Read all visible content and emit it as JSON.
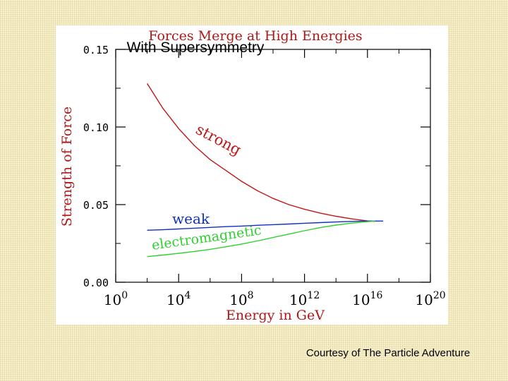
{
  "annotations": {
    "subtitle": "With Supersymmetry",
    "credit": "Courtesy of The Particle Adventure"
  },
  "chart_data": {
    "type": "line",
    "title": "Forces Merge at High Energies",
    "xlabel": "Energy in GeV",
    "ylabel": "Strength of Force",
    "x_scale": "log",
    "xlim": [
      1,
      1e+20
    ],
    "ylim": [
      0,
      0.15
    ],
    "x_ticks": [
      {
        "value": 1,
        "base": "10",
        "exp": "0"
      },
      {
        "value": 10000,
        "base": "10",
        "exp": "4"
      },
      {
        "value": 100000000,
        "base": "10",
        "exp": "8"
      },
      {
        "value": 1000000000000.0,
        "base": "10",
        "exp": "12"
      },
      {
        "value": 1e+16,
        "base": "10",
        "exp": "16"
      },
      {
        "value": 1e+20,
        "base": "10",
        "exp": "20"
      }
    ],
    "y_ticks": [
      {
        "value": 0,
        "label": "0.00"
      },
      {
        "value": 0.05,
        "label": "0.05"
      },
      {
        "value": 0.1,
        "label": "0.10"
      },
      {
        "value": 0.15,
        "label": "0.15"
      }
    ],
    "series": [
      {
        "name": "strong",
        "color": "#c01818",
        "points": [
          [
            100,
            0.128
          ],
          [
            1000,
            0.112
          ],
          [
            10000,
            0.099
          ],
          [
            100000,
            0.088
          ],
          [
            1000000,
            0.079
          ],
          [
            10000000,
            0.072
          ],
          [
            100000000,
            0.065
          ],
          [
            1000000000,
            0.059
          ],
          [
            10000000000,
            0.054
          ],
          [
            100000000000,
            0.05
          ],
          [
            1000000000000.0,
            0.047
          ],
          [
            10000000000000.0,
            0.0445
          ],
          [
            100000000000000.0,
            0.0425
          ],
          [
            1000000000000000.0,
            0.0408
          ],
          [
            1e+16,
            0.0395
          ],
          [
            3e+16,
            0.0392
          ]
        ]
      },
      {
        "name": "weak",
        "color": "#1030c0",
        "points": [
          [
            100,
            0.0335
          ],
          [
            1000,
            0.0338
          ],
          [
            10000,
            0.0343
          ],
          [
            100000,
            0.0348
          ],
          [
            1000000,
            0.0353
          ],
          [
            10000000,
            0.0358
          ],
          [
            100000000,
            0.0362
          ],
          [
            1000000000,
            0.0367
          ],
          [
            10000000000,
            0.0371
          ],
          [
            100000000000,
            0.0375
          ],
          [
            1000000000000.0,
            0.038
          ],
          [
            10000000000000.0,
            0.0384
          ],
          [
            100000000000000.0,
            0.0388
          ],
          [
            1000000000000000.0,
            0.0392
          ],
          [
            1e+16,
            0.0394
          ],
          [
            1e+17,
            0.0394
          ]
        ]
      },
      {
        "name": "electromagnetic",
        "color": "#30d030",
        "points": [
          [
            100,
            0.0165
          ],
          [
            1000,
            0.0175
          ],
          [
            10000,
            0.0186
          ],
          [
            100000,
            0.0198
          ],
          [
            1000000,
            0.0212
          ],
          [
            10000000,
            0.0228
          ],
          [
            100000000,
            0.0246
          ],
          [
            1000000000,
            0.0266
          ],
          [
            10000000000,
            0.0288
          ],
          [
            100000000000,
            0.031
          ],
          [
            1000000000000.0,
            0.0332
          ],
          [
            10000000000000.0,
            0.0352
          ],
          [
            100000000000000.0,
            0.0368
          ],
          [
            1000000000000000.0,
            0.0381
          ],
          [
            1e+16,
            0.039
          ],
          [
            3e+16,
            0.0394
          ]
        ]
      }
    ]
  }
}
